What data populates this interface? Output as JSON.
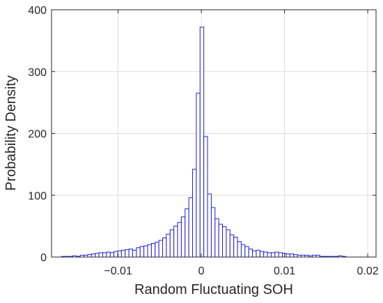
{
  "chart_data": {
    "type": "bar",
    "subtype": "histogram",
    "title": "",
    "xlabel": "Random Fluctuating SOH",
    "ylabel": "Probability Density",
    "xlim": [
      -0.018,
      0.021
    ],
    "ylim": [
      0,
      400
    ],
    "xticks": [
      -0.01,
      0,
      0.01,
      0.02
    ],
    "xtick_labels": [
      "−0.01",
      "0",
      "0.01",
      "0.02"
    ],
    "yticks": [
      0,
      100,
      200,
      300,
      400
    ],
    "ytick_labels": [
      "0",
      "100",
      "200",
      "300",
      "400"
    ],
    "grid": true,
    "bar_color": "#1f1fd6",
    "bin_width": 0.00045,
    "bins_start": [
      -0.0168,
      -0.01635,
      -0.0159,
      -0.01545,
      -0.015,
      -0.01455,
      -0.0141,
      -0.01365,
      -0.0132,
      -0.01275,
      -0.0123,
      -0.01185,
      -0.0114,
      -0.01095,
      -0.0105,
      -0.01005,
      -0.0096,
      -0.00915,
      -0.0087,
      -0.00825,
      -0.0078,
      -0.00735,
      -0.0069,
      -0.00645,
      -0.006,
      -0.00555,
      -0.0051,
      -0.00465,
      -0.0042,
      -0.00375,
      -0.0033,
      -0.00285,
      -0.0024,
      -0.00195,
      -0.0015,
      -0.00105,
      -0.0006,
      -0.00015,
      0.0003,
      0.00075,
      0.0012,
      0.00165,
      0.0021,
      0.00255,
      0.003,
      0.00345,
      0.0039,
      0.00435,
      0.0048,
      0.00525,
      0.0057,
      0.00615,
      0.0066,
      0.00705,
      0.0075,
      0.00795,
      0.0084,
      0.00885,
      0.0093,
      0.00975,
      0.0102,
      0.01065,
      0.0111,
      0.01155,
      0.012,
      0.01245,
      0.0129,
      0.01335,
      0.0138,
      0.01425,
      0.0147,
      0.01515,
      0.0156,
      0.01605,
      0.0165,
      0.01695
    ],
    "values": [
      1,
      1,
      1,
      2,
      1,
      3,
      3,
      4,
      5,
      6,
      7,
      7,
      8,
      7,
      9,
      10,
      11,
      12,
      13,
      11,
      15,
      17,
      18,
      20,
      22,
      24,
      27,
      31,
      37,
      44,
      50,
      56,
      65,
      78,
      96,
      142,
      265,
      372,
      195,
      102,
      80,
      62,
      53,
      49,
      44,
      36,
      32,
      25,
      20,
      17,
      13,
      10,
      11,
      9,
      8,
      7,
      7,
      8,
      7,
      6,
      5,
      5,
      4,
      3,
      3,
      3,
      2,
      3,
      3,
      1,
      1,
      1,
      1,
      1,
      2,
      1
    ]
  }
}
